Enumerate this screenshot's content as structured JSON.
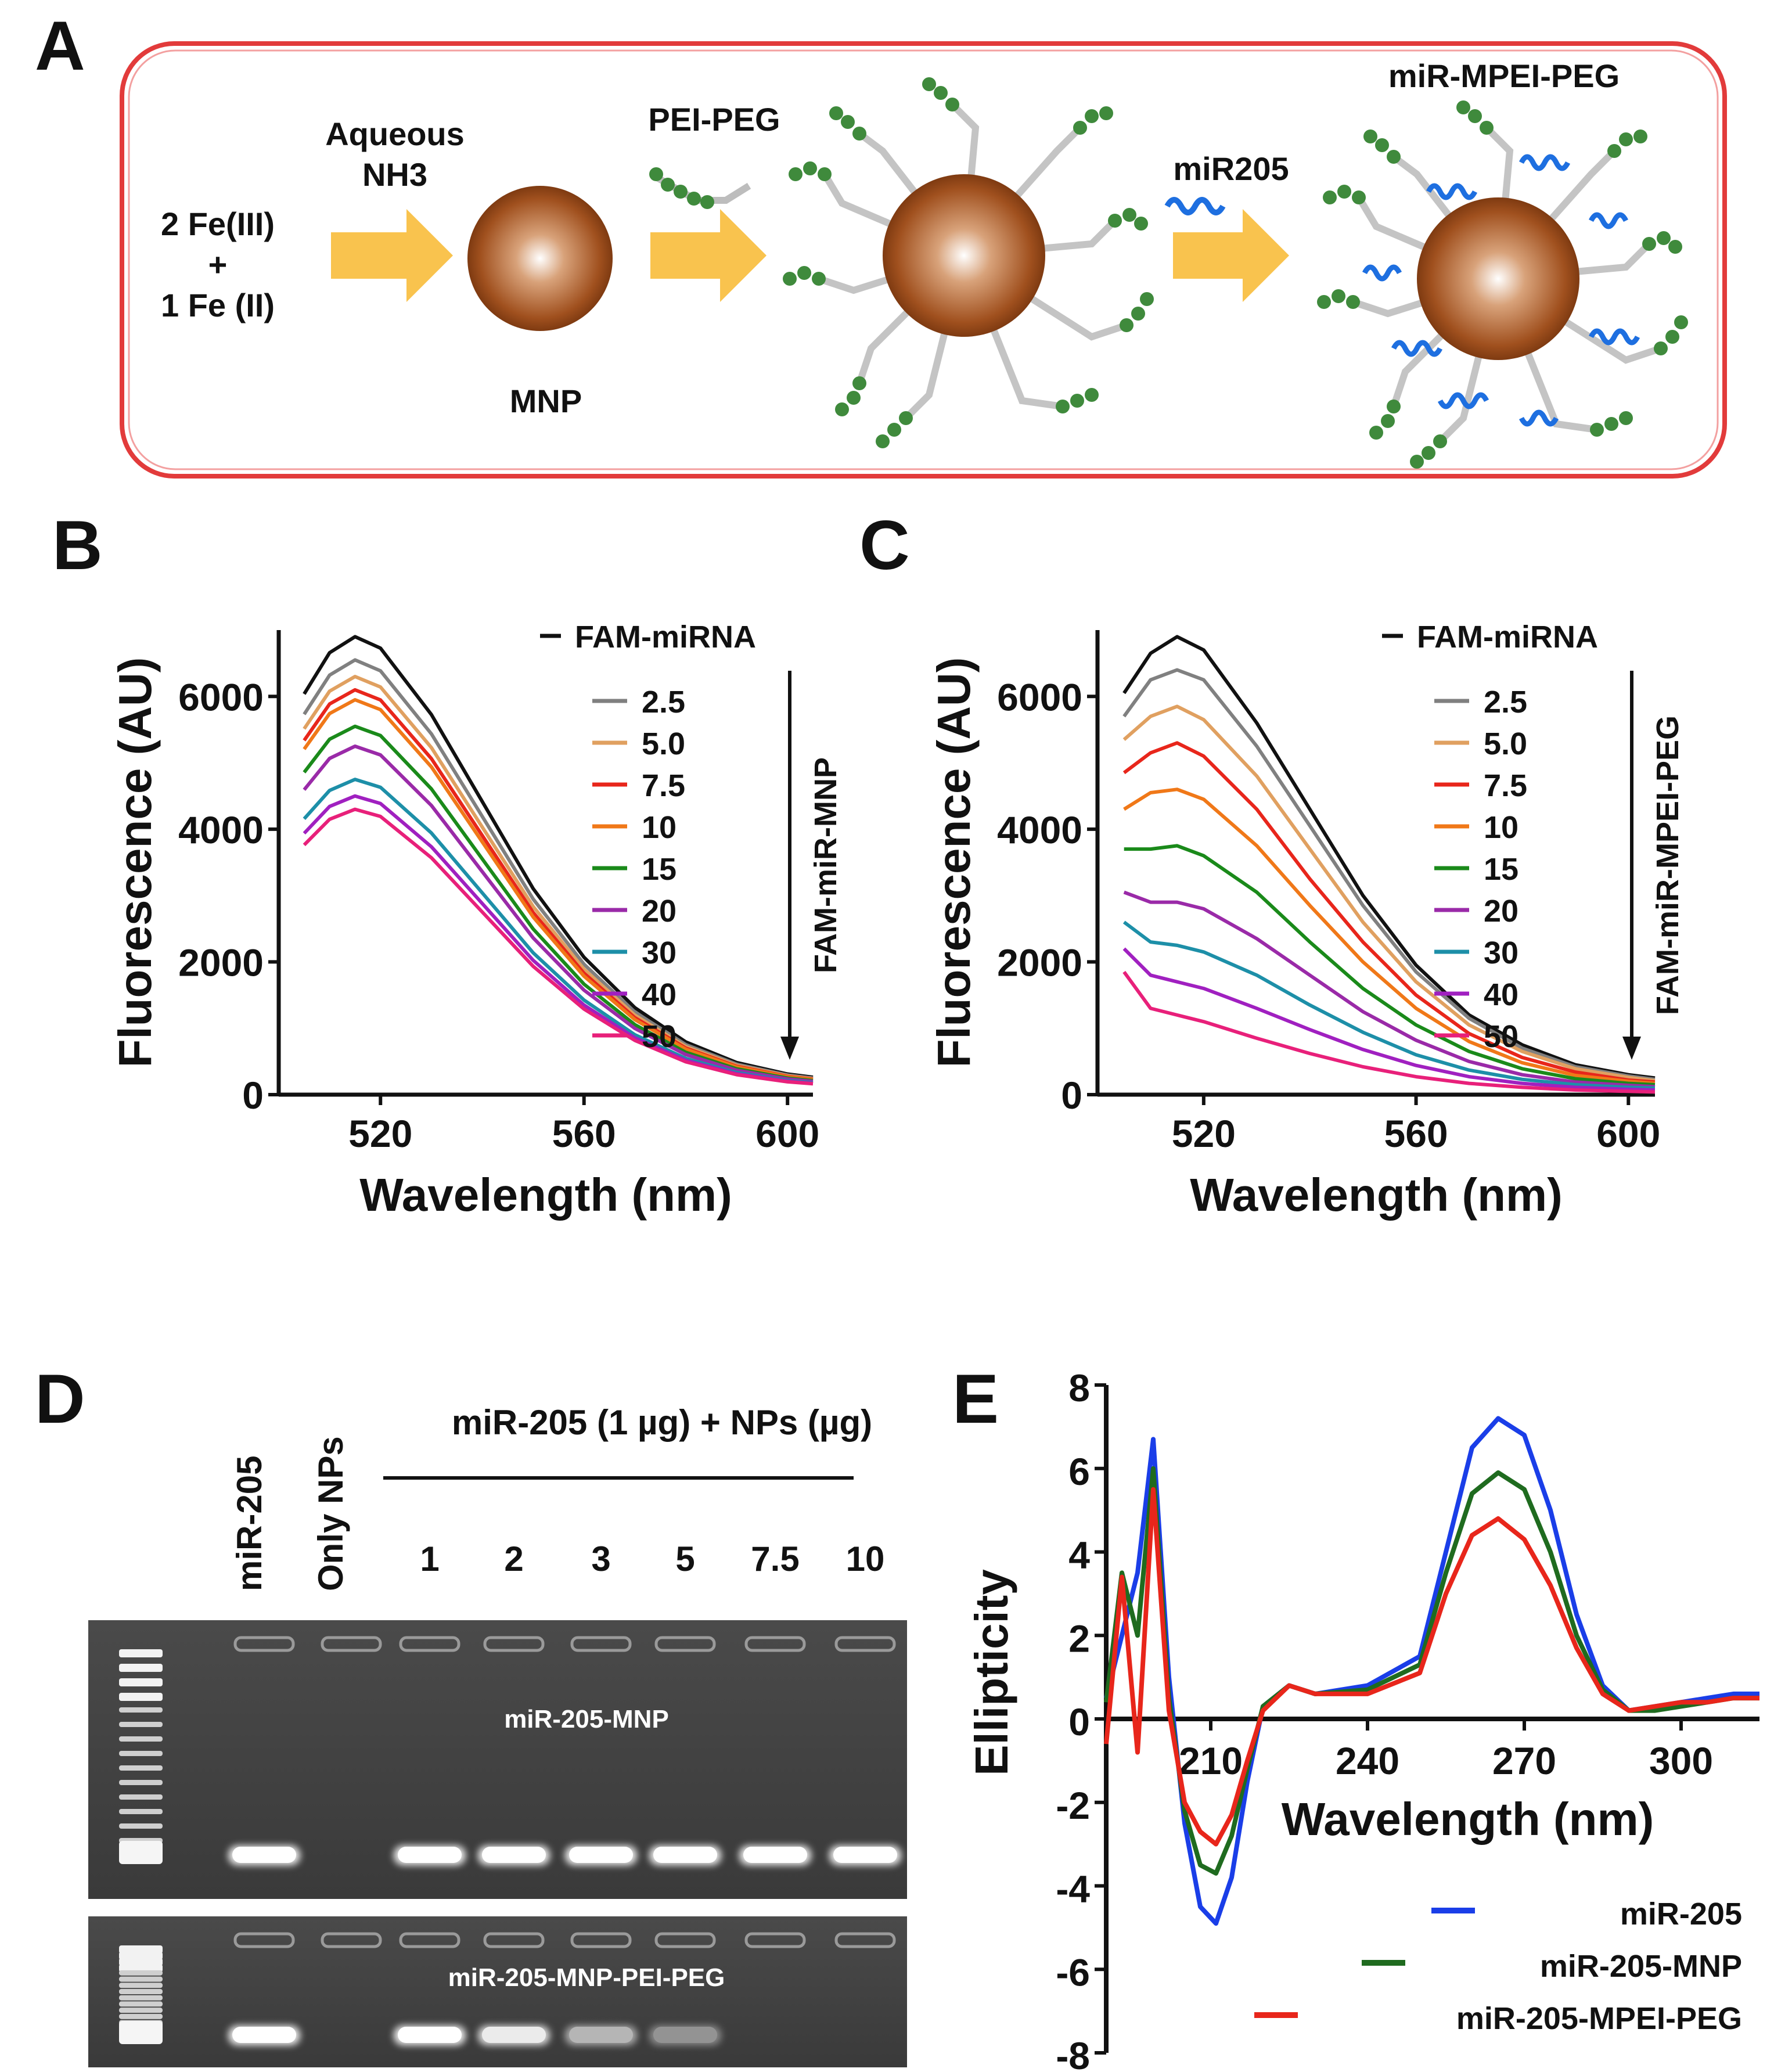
{
  "panels": {
    "A": "A",
    "B": "B",
    "C": "C",
    "D": "D",
    "E": "E"
  },
  "schematic": {
    "reactant_line1": "2 Fe(III)",
    "reactant_plus": "+",
    "reactant_line2": "1 Fe (II)",
    "reagent1_line1": "Aqueous",
    "reagent1_line2": "NH3",
    "reagent2": "PEI-PEG",
    "reagent3": "miR205",
    "particle1": "MNP",
    "product": "miR-MPEI-PEG",
    "colors": {
      "border": "#e23b3b",
      "arrow": "#f9c34e",
      "particle": "#a0501e",
      "peg": "#3f8a3c",
      "mirna": "#1e6fe0",
      "pei": "#bdbdbd"
    }
  },
  "chart_data": [
    {
      "id": "B",
      "type": "line",
      "xlabel": "Wavelength (nm)",
      "ylabel": "Fluorescence  (AU)",
      "xlim": [
        500,
        605
      ],
      "ylim": [
        0,
        7000
      ],
      "xticks": [
        520,
        560,
        600
      ],
      "xtick_labels": [
        "520",
        "560",
        "600"
      ],
      "yticks": [
        0,
        2000,
        4000,
        6000
      ],
      "ytick_labels": [
        "0",
        "2000",
        "4000",
        "6000"
      ],
      "arrow_label": "FAM-miR-MNP",
      "x": [
        505,
        510,
        515,
        520,
        530,
        540,
        550,
        560,
        570,
        580,
        590,
        600,
        605
      ],
      "series": [
        {
          "name": "FAM-miRNA",
          "color": "#111111",
          "peak": 6900
        },
        {
          "name": "2.5",
          "color": "#808080",
          "peak": 6550
        },
        {
          "name": "5.0",
          "color": "#e0a060",
          "peak": 6300
        },
        {
          "name": "7.5",
          "color": "#e8261b",
          "peak": 6100
        },
        {
          "name": "10",
          "color": "#f07818",
          "peak": 5950
        },
        {
          "name": "15",
          "color": "#1a8a1a",
          "peak": 5550
        },
        {
          "name": "20",
          "color": "#9a2aa8",
          "peak": 5250
        },
        {
          "name": "30",
          "color": "#1d8fa8",
          "peak": 4750
        },
        {
          "name": "40",
          "color": "#a020c0",
          "peak": 4500
        },
        {
          "name": "50",
          "color": "#e8207a",
          "peak": 4300
        }
      ]
    },
    {
      "id": "C",
      "type": "line",
      "xlabel": "Wavelength (nm)",
      "ylabel": "Fluorescence  (AU)",
      "xlim": [
        500,
        605
      ],
      "ylim": [
        0,
        7000
      ],
      "xticks": [
        520,
        560,
        600
      ],
      "xtick_labels": [
        "520",
        "560",
        "600"
      ],
      "yticks": [
        0,
        2000,
        4000,
        6000
      ],
      "ytick_labels": [
        "0",
        "2000",
        "4000",
        "6000"
      ],
      "arrow_label": "FAM-miR-MPEI-PEG",
      "x": [
        505,
        510,
        515,
        520,
        530,
        540,
        550,
        560,
        570,
        580,
        590,
        600,
        605
      ],
      "series": [
        {
          "name": "FAM-miRNA",
          "color": "#111111",
          "values": [
            6050,
            6650,
            6900,
            6700,
            5600,
            4300,
            3000,
            1950,
            1200,
            750,
            450,
            300,
            250
          ]
        },
        {
          "name": "2.5",
          "color": "#808080",
          "values": [
            5700,
            6250,
            6400,
            6250,
            5250,
            4050,
            2850,
            1850,
            1150,
            700,
            420,
            280,
            230
          ]
        },
        {
          "name": "5.0",
          "color": "#e0a060",
          "values": [
            5350,
            5700,
            5850,
            5650,
            4800,
            3700,
            2600,
            1700,
            1050,
            650,
            390,
            260,
            210
          ]
        },
        {
          "name": "7.5",
          "color": "#e8261b",
          "values": [
            4850,
            5150,
            5300,
            5100,
            4300,
            3250,
            2300,
            1500,
            920,
            560,
            340,
            220,
            190
          ]
        },
        {
          "name": "10",
          "color": "#f07818",
          "values": [
            4300,
            4550,
            4600,
            4450,
            3750,
            2850,
            2000,
            1300,
            800,
            480,
            290,
            200,
            170
          ]
        },
        {
          "name": "15",
          "color": "#1a8a1a",
          "values": [
            3700,
            3700,
            3750,
            3600,
            3050,
            2300,
            1600,
            1050,
            650,
            390,
            240,
            170,
            150
          ]
        },
        {
          "name": "20",
          "color": "#9a2aa8",
          "values": [
            3050,
            2900,
            2900,
            2800,
            2350,
            1800,
            1250,
            820,
            500,
            300,
            190,
            140,
            120
          ]
        },
        {
          "name": "30",
          "color": "#1d8fa8",
          "values": [
            2600,
            2300,
            2250,
            2150,
            1800,
            1350,
            940,
            600,
            370,
            230,
            150,
            110,
            100
          ]
        },
        {
          "name": "40",
          "color": "#a020c0",
          "values": [
            2200,
            1800,
            1700,
            1600,
            1300,
            980,
            680,
            440,
            270,
            170,
            110,
            80,
            70
          ]
        },
        {
          "name": "50",
          "color": "#e8207a",
          "values": [
            1850,
            1300,
            1200,
            1100,
            850,
            620,
            420,
            270,
            170,
            110,
            70,
            50,
            40
          ]
        }
      ]
    },
    {
      "id": "E",
      "type": "line",
      "xlabel": "Wavelength (nm)",
      "ylabel": "Ellipticity",
      "xlim": [
        190,
        315
      ],
      "ylim": [
        -8,
        8
      ],
      "xticks": [
        210,
        240,
        270,
        300
      ],
      "xtick_labels": [
        "210",
        "240",
        "270",
        "300"
      ],
      "yticks": [
        -8,
        -6,
        -4,
        -2,
        0,
        2,
        4,
        6,
        8
      ],
      "ytick_labels": [
        "-8",
        "-6",
        "-4",
        "-2",
        "0",
        "2",
        "4",
        "6",
        "8"
      ],
      "x": [
        190,
        193,
        196,
        199,
        202,
        205,
        208,
        211,
        214,
        217,
        220,
        225,
        230,
        240,
        250,
        255,
        260,
        265,
        270,
        275,
        280,
        285,
        290,
        295,
        300,
        305,
        310,
        315
      ],
      "series": [
        {
          "name": "miR-205",
          "color": "#1a3ee8",
          "values": [
            0.5,
            2.0,
            3.5,
            6.7,
            1.0,
            -2.5,
            -4.5,
            -4.9,
            -3.8,
            -1.5,
            0.3,
            0.8,
            0.6,
            0.8,
            1.5,
            4.0,
            6.5,
            7.2,
            6.8,
            5.0,
            2.5,
            0.8,
            0.2,
            0.3,
            0.4,
            0.5,
            0.6,
            0.6
          ]
        },
        {
          "name": "miR-205-MNP",
          "color": "#1f6b1f",
          "values": [
            0.4,
            3.5,
            2.0,
            6.0,
            0.5,
            -2.2,
            -3.5,
            -3.7,
            -2.8,
            -1.2,
            0.3,
            0.8,
            0.6,
            0.7,
            1.3,
            3.5,
            5.4,
            5.9,
            5.5,
            4.0,
            2.0,
            0.7,
            0.2,
            0.2,
            0.3,
            0.4,
            0.5,
            0.5
          ]
        },
        {
          "name": "miR-205-MPEI-PEG",
          "color": "#e8261b",
          "values": [
            -0.6,
            3.4,
            -0.8,
            5.5,
            0.2,
            -2.0,
            -2.7,
            -3.0,
            -2.3,
            -1.0,
            0.2,
            0.8,
            0.6,
            0.6,
            1.1,
            3.0,
            4.4,
            4.8,
            4.3,
            3.2,
            1.7,
            0.6,
            0.2,
            0.3,
            0.4,
            0.4,
            0.5,
            0.5
          ]
        }
      ]
    }
  ],
  "gel": {
    "lane_headers": [
      "miR-205",
      "Only NPs"
    ],
    "group_header": "miR-205 (1 µg) + NPs (µg)",
    "doses": [
      "1",
      "2",
      "3",
      "5",
      "7.5",
      "10"
    ],
    "gel1_label": "miR-205-MNP",
    "gel2_label": "miR-205-MNP-PEI-PEG",
    "gel1_band_intensity": [
      1.0,
      0,
      1.0,
      1.0,
      1.0,
      1.0,
      1.0,
      1.0
    ],
    "gel2_band_intensity": [
      1.0,
      0,
      1.0,
      0.85,
      0.45,
      0.2,
      0,
      0
    ]
  }
}
